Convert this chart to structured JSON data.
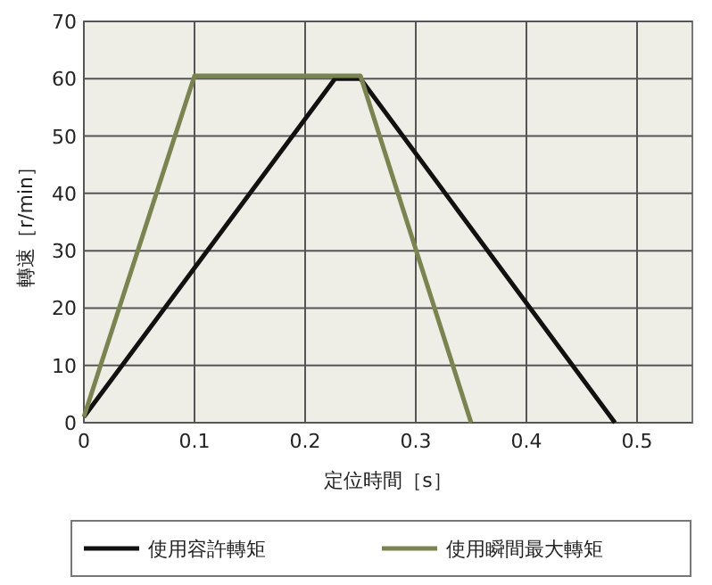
{
  "chart_data": {
    "type": "line",
    "xlabel": "定位時間［s］",
    "ylabel": "轉速［r/min］",
    "xlim": [
      0,
      0.55
    ],
    "xticks": [
      0,
      0.1,
      0.2,
      0.3,
      0.4,
      0.5
    ],
    "ylim": [
      0,
      70
    ],
    "yticks": [
      0,
      10,
      20,
      30,
      40,
      50,
      60,
      70
    ],
    "grid": true,
    "legend": "bottom",
    "line_style": "solid",
    "marker": "none",
    "series": [
      {
        "name": "使用容許轉矩",
        "color": "#111111",
        "x": [
          0,
          0.227,
          0.25,
          0.48
        ],
        "values": [
          1,
          60,
          60,
          0
        ]
      },
      {
        "name": "使用瞬間最大轉矩",
        "color": "#7a8450",
        "x": [
          0,
          0.1,
          0.25,
          0.35
        ],
        "values": [
          1,
          60.5,
          60.5,
          0
        ]
      }
    ]
  }
}
